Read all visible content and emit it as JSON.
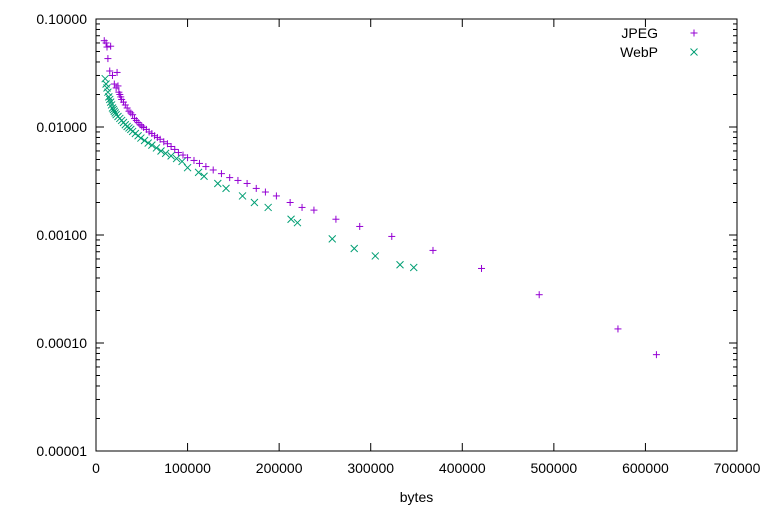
{
  "chart_data": {
    "type": "scatter",
    "xlabel": "bytes",
    "ylabel": "",
    "title": "",
    "xlim": [
      0,
      700000
    ],
    "ylim": [
      1e-05,
      0.1
    ],
    "y_scale": "log",
    "x_ticks": [
      0,
      100000,
      200000,
      300000,
      400000,
      500000,
      600000,
      700000
    ],
    "x_tick_labels": [
      "0",
      "100000",
      "200000",
      "300000",
      "400000",
      "500000",
      "600000",
      "700000"
    ],
    "y_ticks": [
      1e-05,
      0.0001,
      0.001,
      0.01,
      0.1
    ],
    "y_tick_labels": [
      "0.00001",
      "0.00010",
      "0.00100",
      "0.01000",
      "0.10000"
    ],
    "grid": false,
    "legend_position": "top-right",
    "series": [
      {
        "name": "JPEG",
        "marker": "+",
        "color": "#9400d3",
        "points": [
          [
            9000,
            0.063
          ],
          [
            11000,
            0.06
          ],
          [
            12000,
            0.055
          ],
          [
            16000,
            0.056
          ],
          [
            13000,
            0.043
          ],
          [
            15000,
            0.033
          ],
          [
            18000,
            0.03
          ],
          [
            23000,
            0.032
          ],
          [
            20000,
            0.025
          ],
          [
            22000,
            0.023
          ],
          [
            24000,
            0.024
          ],
          [
            25000,
            0.021
          ],
          [
            27000,
            0.019
          ],
          [
            30000,
            0.017
          ],
          [
            26000,
            0.02
          ],
          [
            28000,
            0.018
          ],
          [
            32000,
            0.016
          ],
          [
            34000,
            0.015
          ],
          [
            36000,
            0.014
          ],
          [
            38000,
            0.0135
          ],
          [
            40000,
            0.013
          ],
          [
            42000,
            0.012
          ],
          [
            44000,
            0.0115
          ],
          [
            46000,
            0.011
          ],
          [
            48000,
            0.0105
          ],
          [
            50000,
            0.0102
          ],
          [
            52000,
            0.0099
          ],
          [
            55000,
            0.0095
          ],
          [
            58000,
            0.009
          ],
          [
            61000,
            0.0087
          ],
          [
            64000,
            0.0083
          ],
          [
            67000,
            0.008
          ],
          [
            70000,
            0.0077
          ],
          [
            74000,
            0.0073
          ],
          [
            78000,
            0.007
          ],
          [
            82000,
            0.0066
          ],
          [
            86000,
            0.0062
          ],
          [
            90000,
            0.0058
          ],
          [
            95000,
            0.0055
          ],
          [
            100000,
            0.0052
          ],
          [
            107000,
            0.0049
          ],
          [
            113000,
            0.0046
          ],
          [
            120000,
            0.0043
          ],
          [
            128000,
            0.004
          ],
          [
            137000,
            0.0037
          ],
          [
            146000,
            0.0034
          ],
          [
            155000,
            0.0032
          ],
          [
            165000,
            0.003
          ],
          [
            175000,
            0.0027
          ],
          [
            185000,
            0.0025
          ],
          [
            197000,
            0.0023
          ],
          [
            212000,
            0.002
          ],
          [
            225000,
            0.0018
          ],
          [
            238000,
            0.0017
          ],
          [
            262000,
            0.0014
          ],
          [
            288000,
            0.0012
          ],
          [
            323000,
            0.00097
          ],
          [
            368000,
            0.00072
          ],
          [
            421000,
            0.00049
          ],
          [
            484000,
            0.00028
          ],
          [
            570000,
            0.000135
          ],
          [
            612000,
            7.8e-05
          ]
        ]
      },
      {
        "name": "WebP",
        "marker": "x",
        "color": "#009e73",
        "points": [
          [
            10000,
            0.028
          ],
          [
            11000,
            0.025
          ],
          [
            12000,
            0.023
          ],
          [
            13000,
            0.021
          ],
          [
            14000,
            0.019
          ],
          [
            15000,
            0.018
          ],
          [
            16000,
            0.017
          ],
          [
            17000,
            0.016
          ],
          [
            18000,
            0.015
          ],
          [
            19000,
            0.0145
          ],
          [
            20000,
            0.014
          ],
          [
            21000,
            0.0135
          ],
          [
            22000,
            0.013
          ],
          [
            24000,
            0.0125
          ],
          [
            26000,
            0.012
          ],
          [
            28000,
            0.0115
          ],
          [
            30000,
            0.011
          ],
          [
            32000,
            0.0105
          ],
          [
            34000,
            0.0101
          ],
          [
            36000,
            0.0098
          ],
          [
            38000,
            0.0095
          ],
          [
            40000,
            0.0091
          ],
          [
            43000,
            0.0087
          ],
          [
            46000,
            0.0083
          ],
          [
            49000,
            0.0079
          ],
          [
            53000,
            0.0075
          ],
          [
            57000,
            0.0071
          ],
          [
            61000,
            0.0068
          ],
          [
            66000,
            0.0064
          ],
          [
            71000,
            0.006
          ],
          [
            76000,
            0.0057
          ],
          [
            82000,
            0.0054
          ],
          [
            88000,
            0.0051
          ],
          [
            94000,
            0.0048
          ],
          [
            100000,
            0.0042
          ],
          [
            112000,
            0.0038
          ],
          [
            118000,
            0.0035
          ],
          [
            133000,
            0.003
          ],
          [
            142000,
            0.0027
          ],
          [
            160000,
            0.0023
          ],
          [
            173000,
            0.002
          ],
          [
            188000,
            0.0018
          ],
          [
            213000,
            0.0014
          ],
          [
            220000,
            0.0013
          ],
          [
            258000,
            0.00092
          ],
          [
            282000,
            0.00075
          ],
          [
            305000,
            0.00064
          ],
          [
            332000,
            0.00053
          ],
          [
            347000,
            0.0005
          ]
        ]
      }
    ]
  }
}
